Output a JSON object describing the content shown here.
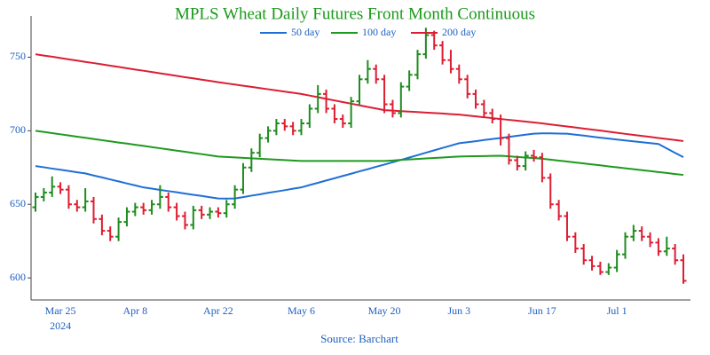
{
  "chart_data": {
    "type": "ohlc",
    "title": "MPLS Wheat Daily Futures Front Month Continuous",
    "source": "Source: Barchart",
    "year_label": "2024",
    "categories": [
      null,
      null,
      null,
      "Mar 25",
      null,
      null,
      null,
      null,
      null,
      null,
      null,
      null,
      "Apr 8",
      null,
      null,
      null,
      null,
      null,
      null,
      null,
      null,
      null,
      "Apr 22",
      null,
      null,
      null,
      null,
      null,
      null,
      null,
      null,
      null,
      "May 6",
      null,
      null,
      null,
      null,
      null,
      null,
      null,
      null,
      null,
      "May 20",
      null,
      null,
      null,
      null,
      null,
      null,
      null,
      null,
      "Jun 3",
      null,
      null,
      null,
      null,
      null,
      null,
      null,
      null,
      null,
      "Jun 17",
      null,
      null,
      null,
      null,
      null,
      null,
      null,
      null,
      "Jul 1",
      null,
      null,
      null,
      null,
      null,
      null,
      null,
      null
    ],
    "open": [
      648,
      655,
      658,
      662,
      660,
      650,
      648,
      652,
      640,
      632,
      628,
      638,
      645,
      648,
      646,
      650,
      655,
      648,
      642,
      636,
      646,
      643,
      645,
      644,
      650,
      660,
      675,
      685,
      695,
      700,
      705,
      703,
      700,
      705,
      715,
      725,
      715,
      708,
      705,
      720,
      735,
      742,
      735,
      718,
      712,
      730,
      738,
      752,
      765,
      758,
      748,
      742,
      735,
      725,
      718,
      712,
      708,
      695,
      680,
      676,
      683,
      682,
      668,
      650,
      642,
      628,
      620,
      612,
      608,
      604,
      607,
      616,
      628,
      632,
      628,
      624,
      618,
      620,
      612
    ],
    "high": [
      658,
      661,
      669,
      665,
      663,
      653,
      661,
      655,
      643,
      635,
      641,
      648,
      651,
      651,
      653,
      663,
      658,
      651,
      645,
      649,
      649,
      648,
      648,
      653,
      663,
      678,
      688,
      698,
      703,
      708,
      708,
      706,
      708,
      718,
      731,
      728,
      718,
      711,
      723,
      738,
      748,
      745,
      738,
      721,
      733,
      741,
      755,
      770,
      768,
      761,
      755,
      745,
      738,
      728,
      721,
      715,
      711,
      698,
      683,
      686,
      687,
      685,
      671,
      653,
      645,
      631,
      623,
      615,
      611,
      610,
      619,
      631,
      636,
      635,
      631,
      627,
      628,
      623,
      616
    ],
    "low": [
      645,
      652,
      655,
      657,
      647,
      645,
      645,
      637,
      629,
      625,
      625,
      635,
      642,
      643,
      643,
      647,
      645,
      639,
      633,
      633,
      640,
      640,
      641,
      641,
      647,
      657,
      672,
      682,
      692,
      697,
      700,
      697,
      697,
      702,
      712,
      712,
      705,
      702,
      702,
      717,
      732,
      732,
      712,
      709,
      709,
      727,
      735,
      749,
      755,
      745,
      739,
      732,
      722,
      715,
      709,
      705,
      690,
      677,
      673,
      673,
      679,
      665,
      647,
      639,
      625,
      617,
      609,
      605,
      602,
      602,
      604,
      613,
      625,
      625,
      621,
      615,
      615,
      609,
      596
    ],
    "close": [
      655,
      658,
      662,
      660,
      650,
      648,
      652,
      640,
      632,
      628,
      638,
      645,
      648,
      646,
      650,
      655,
      648,
      642,
      636,
      646,
      643,
      645,
      644,
      650,
      660,
      675,
      685,
      695,
      700,
      705,
      703,
      700,
      705,
      715,
      725,
      715,
      708,
      705,
      720,
      735,
      742,
      735,
      718,
      712,
      730,
      738,
      752,
      765,
      758,
      748,
      742,
      735,
      725,
      718,
      712,
      708,
      695,
      680,
      676,
      683,
      682,
      668,
      650,
      642,
      628,
      620,
      612,
      608,
      604,
      607,
      616,
      628,
      632,
      628,
      624,
      618,
      620,
      612,
      598
    ],
    "up_color": "#1e8c1e",
    "down_color": "#dc1e32",
    "series": [
      {
        "name": "50 day",
        "color": "#1f6fd6",
        "values": [
          676,
          675.2,
          674.3,
          673.5,
          672.7,
          671.8,
          671,
          669.6,
          668.3,
          666.9,
          665.6,
          664.2,
          662.9,
          661.5,
          660.7,
          659.8,
          659,
          658.2,
          657.3,
          656.5,
          655.7,
          654.8,
          654,
          653.9,
          654,
          654.9,
          655.9,
          656.8,
          657.8,
          658.7,
          659.6,
          660.6,
          661.5,
          663.1,
          664.6,
          666.2,
          667.7,
          669.3,
          670.8,
          672.4,
          673.9,
          675.5,
          677,
          678.6,
          680.2,
          681.8,
          683.4,
          685.1,
          686.7,
          688.3,
          689.9,
          691.5,
          692.2,
          692.9,
          693.7,
          694.4,
          695.1,
          695.8,
          696.6,
          697.3,
          698,
          698.2,
          698.2,
          698.1,
          698,
          697.3,
          696.7,
          696,
          695.3,
          694.7,
          694,
          693.4,
          692.8,
          692.2,
          691.6,
          691,
          688,
          685,
          682
        ]
      },
      {
        "name": "100 day",
        "color": "#1e9a1e",
        "values": [
          700,
          699.2,
          698.4,
          697.6,
          696.8,
          696,
          695.2,
          694.4,
          693.6,
          692.8,
          692,
          691.3,
          690.5,
          689.7,
          688.9,
          688.1,
          687.3,
          686.5,
          685.7,
          684.9,
          684.1,
          683.3,
          682.5,
          682.2,
          681.9,
          681.6,
          681.3,
          681,
          680.7,
          680.4,
          680.1,
          679.8,
          679.5,
          679.5,
          679.5,
          679.5,
          679.5,
          679.5,
          679.5,
          679.5,
          679.5,
          679.5,
          679.5,
          679.8,
          680.2,
          680.5,
          680.8,
          681.2,
          681.5,
          681.8,
          682.2,
          682.5,
          682.6,
          682.7,
          682.8,
          682.9,
          683,
          682.6,
          682.2,
          681.8,
          681.4,
          681,
          680.4,
          679.7,
          679.1,
          678.4,
          677.8,
          677.1,
          676.5,
          675.8,
          675.2,
          674.5,
          673.9,
          673.2,
          672.6,
          671.9,
          671.3,
          670.6,
          670
        ]
      },
      {
        "name": "200 day",
        "color": "#dc1e32",
        "values": [
          752,
          751.1,
          750.3,
          749.4,
          748.5,
          747.7,
          746.8,
          746,
          745.1,
          744.2,
          743.4,
          742.5,
          741.6,
          740.8,
          739.9,
          739,
          738.2,
          737.3,
          736.4,
          735.6,
          734.7,
          733.9,
          733,
          732.2,
          731.4,
          730.6,
          729.8,
          729,
          728.2,
          727.4,
          726.6,
          725.8,
          725,
          723.9,
          722.8,
          721.7,
          720.6,
          719.5,
          718.4,
          717.3,
          716.2,
          715.1,
          714,
          713.7,
          713.3,
          713,
          712.7,
          712.3,
          712,
          711.7,
          711.3,
          711,
          710.4,
          709.8,
          709.2,
          708.6,
          708,
          707.4,
          706.8,
          706.2,
          705.6,
          705,
          704.3,
          703.6,
          702.9,
          702.2,
          701.5,
          700.8,
          700.1,
          699.4,
          698.6,
          697.9,
          697.2,
          696.5,
          695.8,
          695.1,
          694.4,
          693.7,
          693
        ]
      }
    ],
    "ylim": [
      585,
      778
    ],
    "yticks": [
      600,
      650,
      700,
      750
    ]
  }
}
